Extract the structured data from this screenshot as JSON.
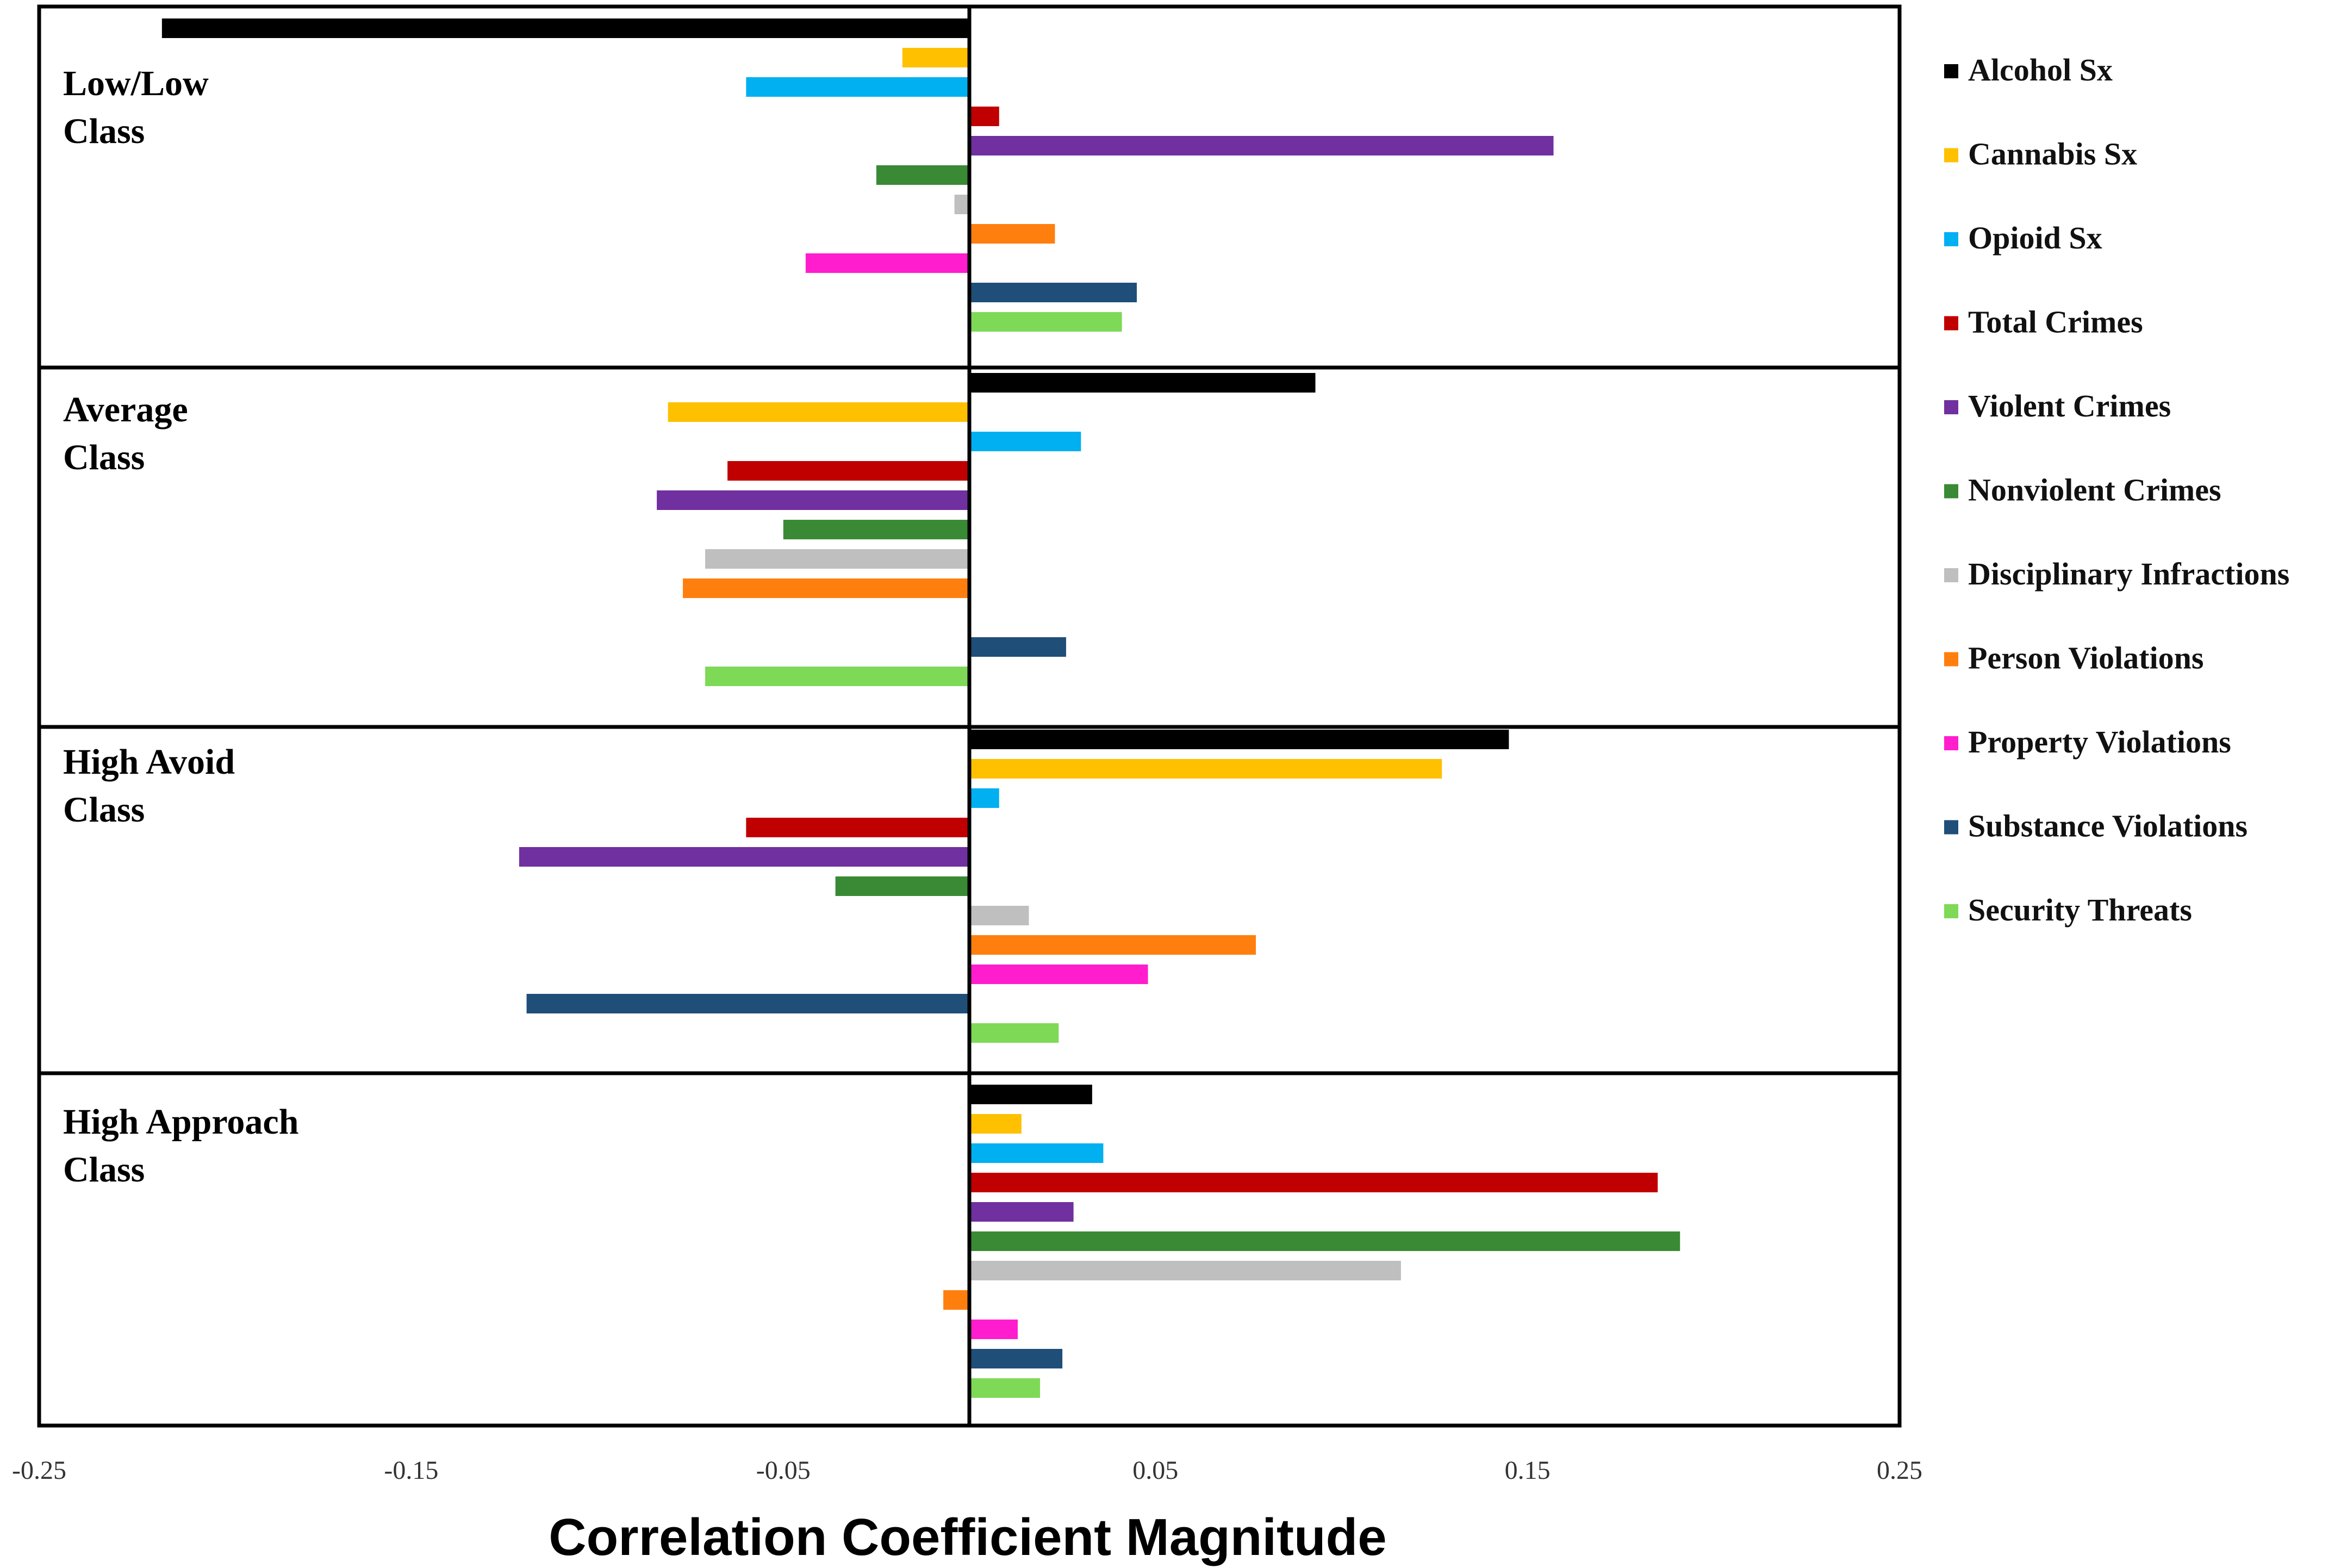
{
  "chart_data": {
    "type": "bar",
    "orientation": "horizontal",
    "xlabel": "Correlation Coefficient Magnitude",
    "xlim": [
      -0.25,
      0.25
    ],
    "x_ticks": [
      "-0.25",
      "-0.15",
      "-0.05",
      "0.05",
      "0.15",
      "0.25"
    ],
    "grid": false,
    "legend_position": "right",
    "series": [
      {
        "name": "Alcohol Sx",
        "color": "#000000"
      },
      {
        "name": "Cannabis Sx",
        "color": "#FFC000"
      },
      {
        "name": "Opioid Sx",
        "color": "#00B0F0"
      },
      {
        "name": "Total Crimes",
        "color": "#C00000"
      },
      {
        "name": "Violent Crimes",
        "color": "#7030A0"
      },
      {
        "name": "Nonviolent Crimes",
        "color": "#3A8A35"
      },
      {
        "name": "Disciplinary Infractions",
        "color": "#BFBFBF"
      },
      {
        "name": "Person Violations",
        "color": "#FF7F0E"
      },
      {
        "name": "Property Violations",
        "color": "#FF1DCE"
      },
      {
        "name": "Substance Violations",
        "color": "#1F4E79"
      },
      {
        "name": "Security Threats",
        "color": "#7ED957"
      }
    ],
    "panels": [
      {
        "label_line1": "Low/Low",
        "label_line2": "Class",
        "values": [
          -0.217,
          -0.018,
          -0.06,
          0.008,
          0.157,
          -0.025,
          -0.004,
          0.023,
          -0.044,
          0.045,
          0.041
        ]
      },
      {
        "label_line1": "Average",
        "label_line2": "Class",
        "values": [
          0.093,
          -0.081,
          0.03,
          -0.065,
          -0.084,
          -0.05,
          -0.071,
          -0.077,
          0.0,
          0.026,
          -0.071
        ]
      },
      {
        "label_line1": "High Avoid",
        "label_line2": "Class",
        "values": [
          0.145,
          0.127,
          0.008,
          -0.06,
          -0.121,
          -0.036,
          0.016,
          0.077,
          0.048,
          -0.119,
          0.024
        ]
      },
      {
        "label_line1": "High Approach",
        "label_line2": "Class",
        "values": [
          0.033,
          0.014,
          0.036,
          0.185,
          0.028,
          0.191,
          0.116,
          -0.007,
          0.013,
          0.025,
          0.019
        ]
      }
    ]
  }
}
